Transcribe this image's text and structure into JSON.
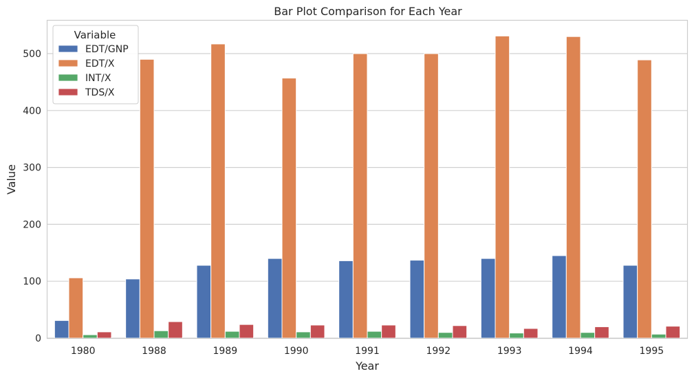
{
  "chart_data": {
    "type": "bar",
    "title": "Bar Plot Comparison for Each Year",
    "xlabel": "Year",
    "ylabel": "Value",
    "categories": [
      "1980",
      "1988",
      "1989",
      "1990",
      "1991",
      "1992",
      "1993",
      "1994",
      "1995"
    ],
    "ylim": [
      0,
      558
    ],
    "yticks": [
      0,
      100,
      200,
      300,
      400,
      500
    ],
    "grid": true,
    "legend": {
      "title": "Variable",
      "placement": "top-left"
    },
    "series": [
      {
        "name": "EDT/GNP",
        "color": "#4c72b0",
        "values": [
          31,
          104,
          128,
          140,
          136,
          137,
          140,
          145,
          128
        ]
      },
      {
        "name": "EDT/X",
        "color": "#dd8452",
        "values": [
          106,
          490,
          517,
          457,
          500,
          500,
          531,
          530,
          489
        ]
      },
      {
        "name": "INT/X",
        "color": "#55a868",
        "values": [
          6,
          13,
          12,
          11,
          12,
          10,
          9,
          10,
          7
        ]
      },
      {
        "name": "TDS/X",
        "color": "#c44e52",
        "values": [
          11,
          29,
          24,
          23,
          23,
          22,
          17,
          20,
          21
        ]
      }
    ]
  }
}
